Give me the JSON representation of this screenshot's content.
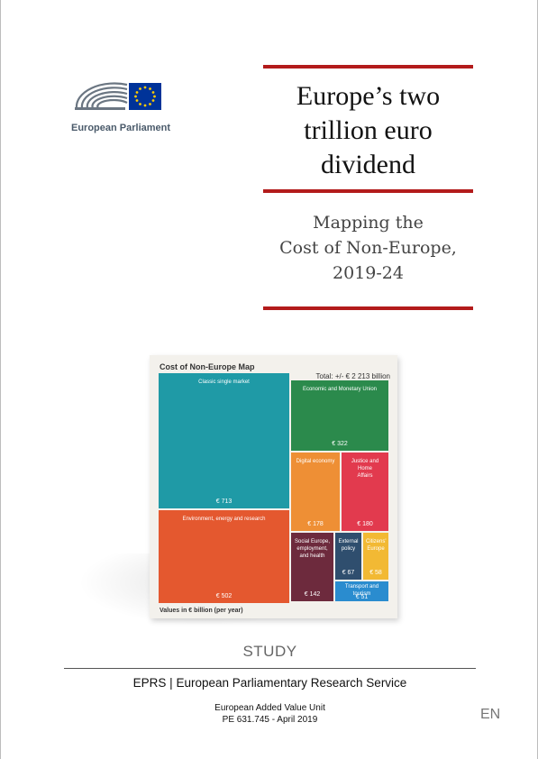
{
  "logo": {
    "name": "European Parliament",
    "colors": {
      "blue": "#003399",
      "gold": "#ffcc00",
      "grey": "#6b7682"
    }
  },
  "title": "Europe’s two\ntrillion euro\ndividend",
  "subtitle": "Mapping the\nCost of Non-Europe,\n2019-24",
  "accent_color": "#b31b1b",
  "map": {
    "title": "Cost of Non-Europe Map",
    "total": "Total: +/- € 2 213 billion",
    "footer": "Values in € billion (per year)",
    "tiles": [
      {
        "label": "Classic single market",
        "value": "€ 713",
        "color": "#1f9aa6"
      },
      {
        "label": "Environment, energy and research",
        "value": "€ 502",
        "color": "#e4582f"
      },
      {
        "label": "Economic and Monetary Union",
        "value": "€ 322",
        "color": "#2b8a4c"
      },
      {
        "label": "Digital economy",
        "value": "€ 178",
        "color": "#ee8f35"
      },
      {
        "label": "Justice and Home\nAffairs",
        "value": "€ 180",
        "color": "#e23a4e"
      },
      {
        "label": "Social Europe,\nemployment,\nand health",
        "value": "€ 142",
        "color": "#6d2a3d"
      },
      {
        "label": "External\npolicy",
        "value": "€ 67",
        "color": "#2f4e6e"
      },
      {
        "label": "Citizens'\nEurope",
        "value": "€ 58",
        "color": "#f2b934"
      },
      {
        "label": "Transport and tourism",
        "value": "€ 51",
        "color": "#2a8ccf"
      }
    ]
  },
  "study_label": "STUDY",
  "service": "EPRS | European Parliamentary Research Service",
  "unit_info": "European Added Value Unit\nPE 631.745 - April 2019",
  "language": "EN"
}
